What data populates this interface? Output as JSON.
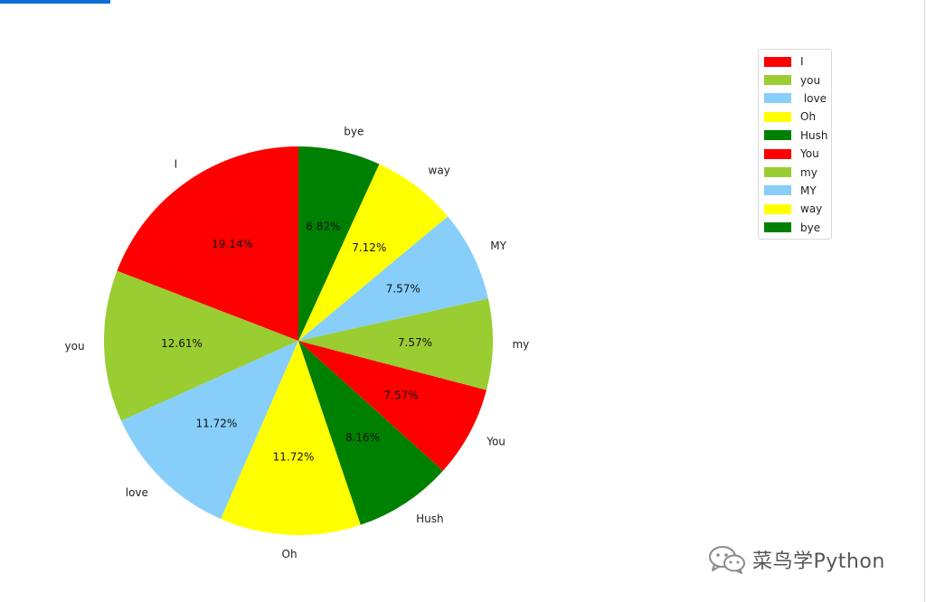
{
  "chart_data": {
    "type": "pie",
    "title": "",
    "categories": [
      "I",
      "you",
      "love",
      "Oh",
      "Hush",
      "You",
      "my",
      "MY",
      "way",
      "bye"
    ],
    "values": [
      19.14,
      12.61,
      11.72,
      11.72,
      8.16,
      7.57,
      7.57,
      7.57,
      7.12,
      6.82
    ],
    "percent_labels": [
      "19.14%",
      "12.61%",
      "11.72%",
      "11.72%",
      "8.16%",
      "7.57%",
      "7.57%",
      "7.57%",
      "7.12%",
      "6.82%"
    ],
    "colors": [
      "#ff0000",
      "#9acd32",
      "#87cefa",
      "#ffff00",
      "#008000",
      "#ff0000",
      "#9acd32",
      "#87cefa",
      "#ffff00",
      "#008000"
    ],
    "start_angle_deg": 90,
    "direction": "counterclockwise",
    "legend": {
      "placement": "upper-right",
      "entries": [
        "I",
        "you",
        " love",
        "Oh",
        "Hush",
        "You",
        "my",
        "MY",
        "way",
        "bye"
      ]
    }
  },
  "watermark": {
    "text": "菜鸟学Python",
    "icon": "wechat-icon"
  }
}
